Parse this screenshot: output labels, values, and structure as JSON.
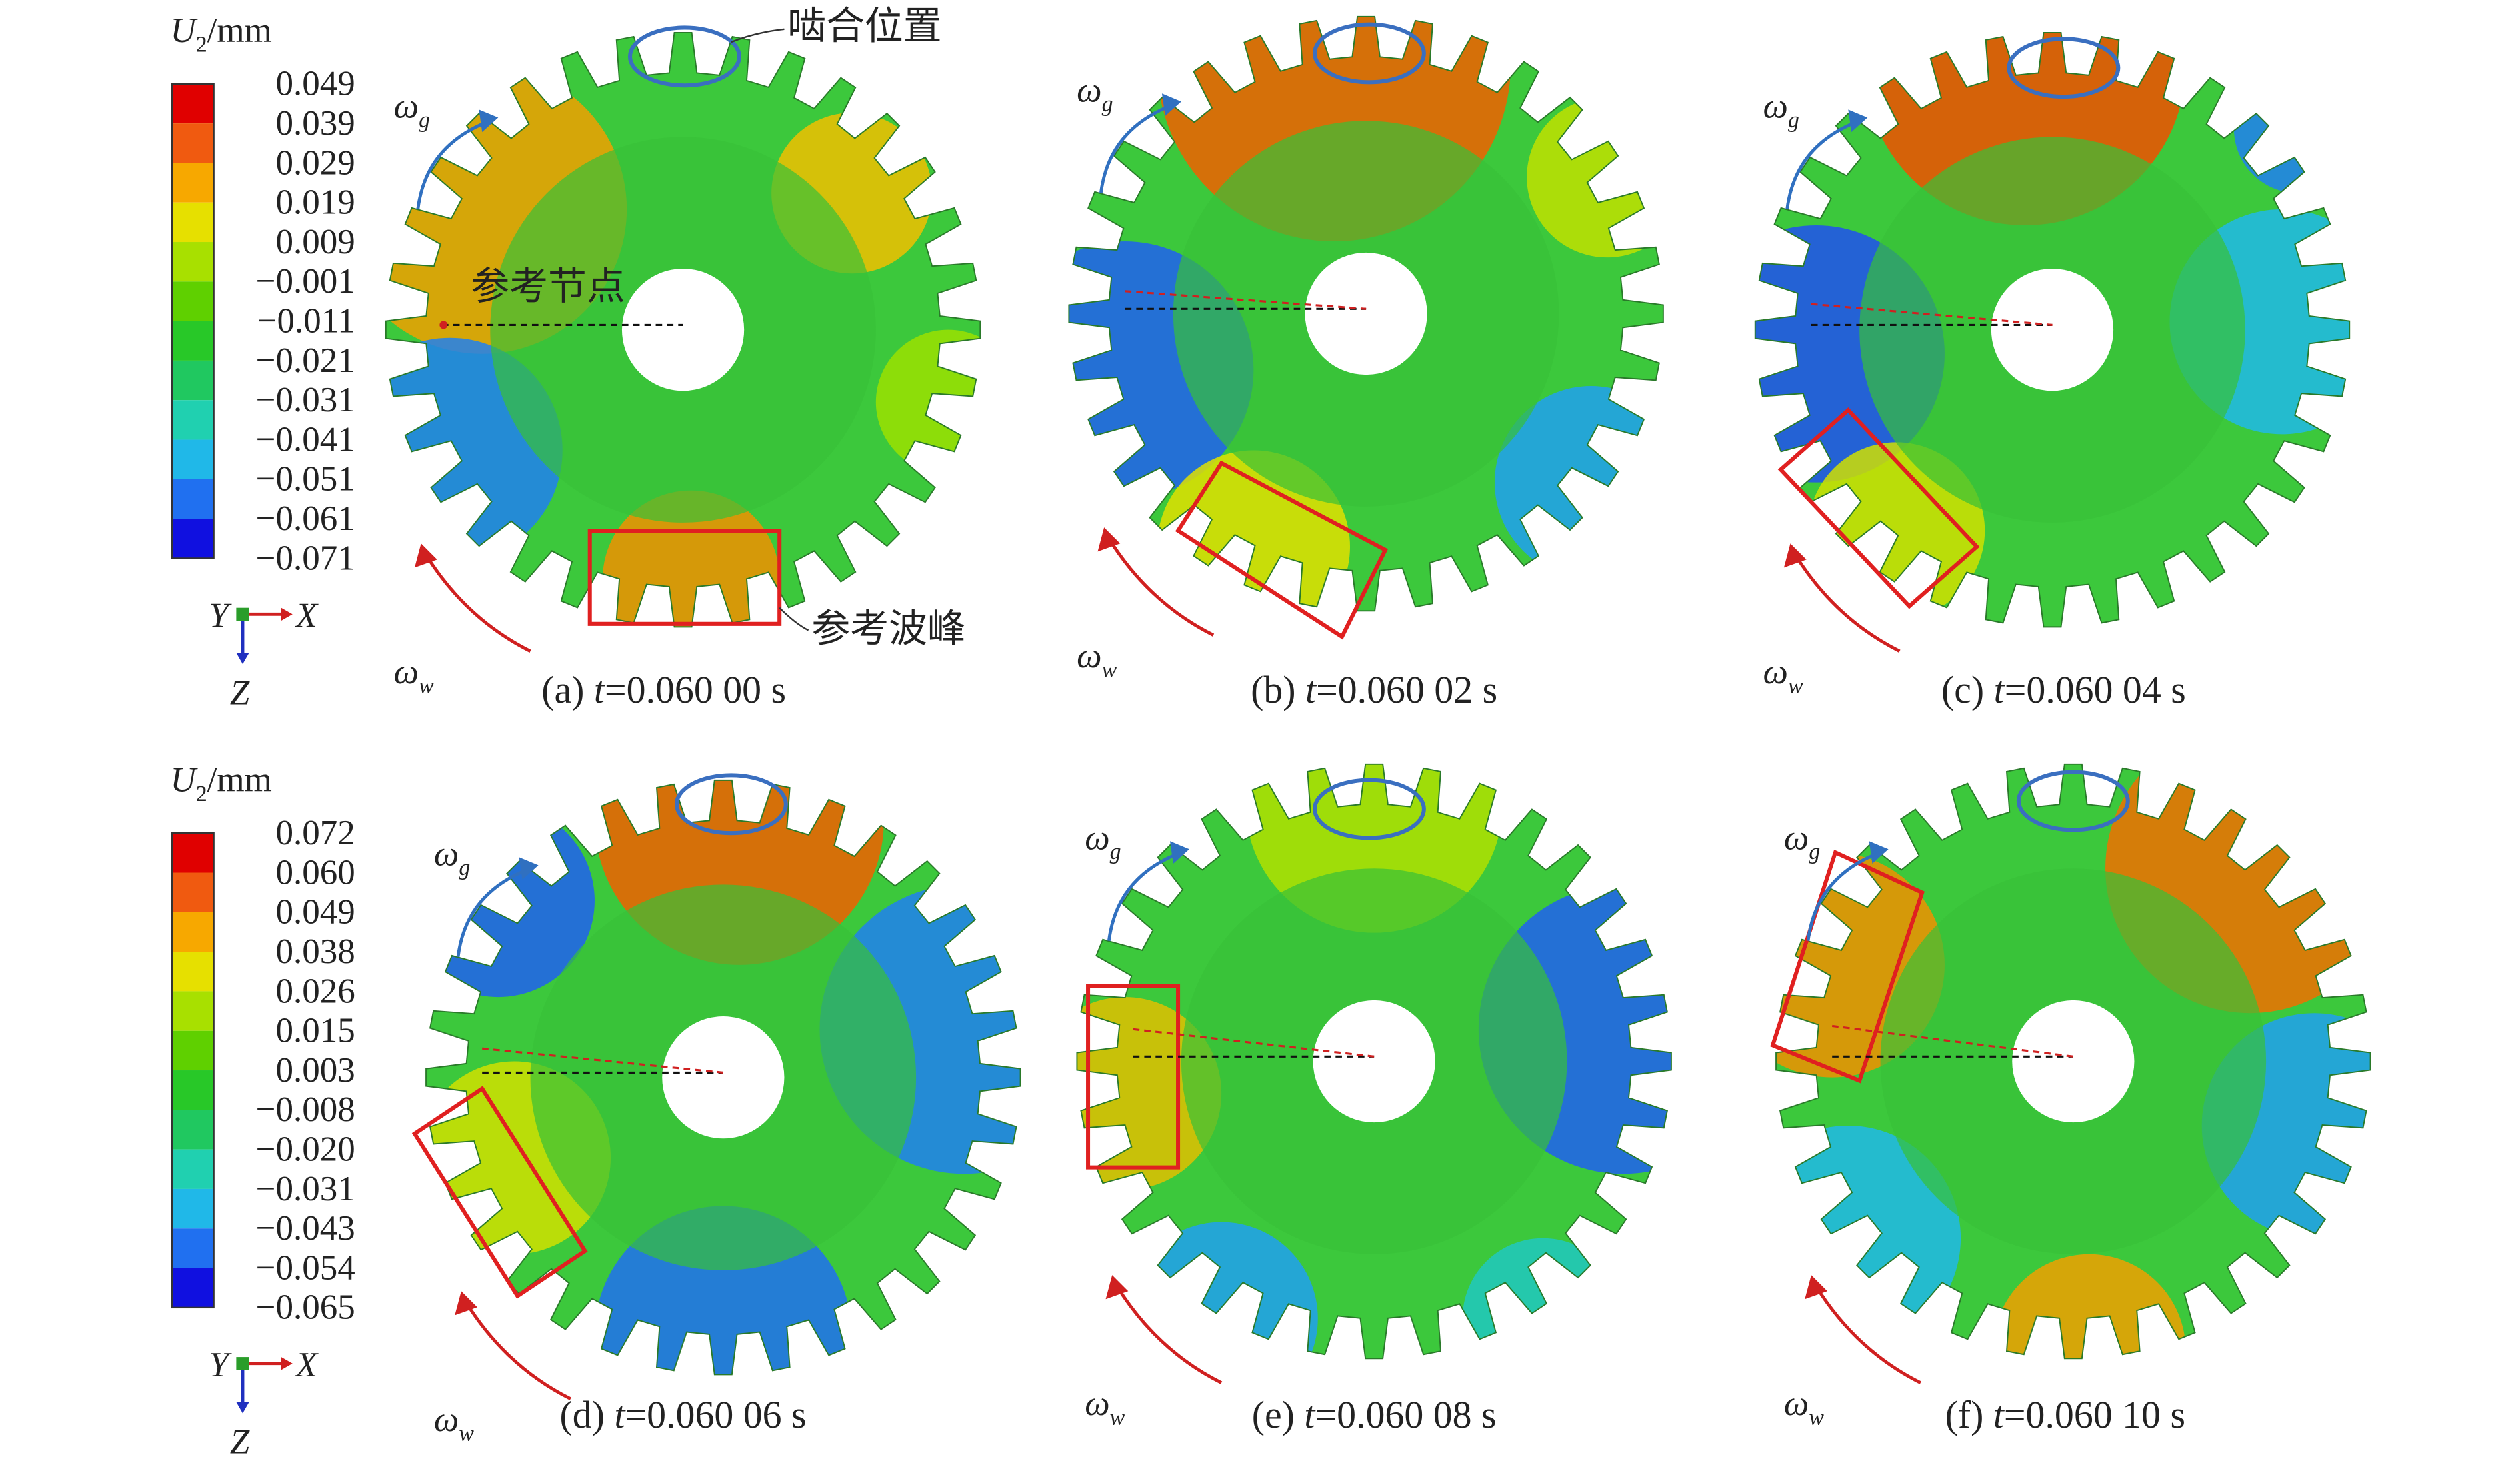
{
  "legends": [
    {
      "title": {
        "symbol": "U",
        "subscript": "2",
        "unit": "/mm"
      },
      "labels": [
        "0.049",
        "0.039",
        "0.029",
        "0.019",
        "0.009",
        "−0.001",
        "−0.011",
        "−0.021",
        "−0.031",
        "−0.041",
        "−0.051",
        "−0.061",
        "−0.071"
      ]
    },
    {
      "title": {
        "symbol": "U",
        "subscript": "2",
        "unit": "/mm"
      },
      "labels": [
        "0.072",
        "0.060",
        "0.049",
        "0.038",
        "0.026",
        "0.015",
        "0.003",
        "−0.008",
        "−0.020",
        "−0.031",
        "−0.043",
        "−0.054",
        "−0.065"
      ]
    }
  ],
  "panels": [
    {
      "label": "(a) ",
      "t": "t",
      "time": "=0.060 00 s"
    },
    {
      "label": "(b) ",
      "t": "t",
      "time": "=0.060 02 s"
    },
    {
      "label": "(c) ",
      "t": "t",
      "time": "=0.060 04 s"
    },
    {
      "label": "(d) ",
      "t": "t",
      "time": "=0.060 06 s"
    },
    {
      "label": "(e) ",
      "t": "t",
      "time": "=0.060 08 s"
    },
    {
      "label": "(f) ",
      "t": "t",
      "time": "=0.060 10 s"
    }
  ],
  "omega": {
    "symbol": "ω",
    "g": "g",
    "w": "w"
  },
  "annotations": {
    "mesh_position": "啮合位置",
    "reference_node": "参考节点",
    "reference_peak": "参考波峰"
  },
  "axes": {
    "y": "Y",
    "x": "X",
    "z": "Z"
  }
}
